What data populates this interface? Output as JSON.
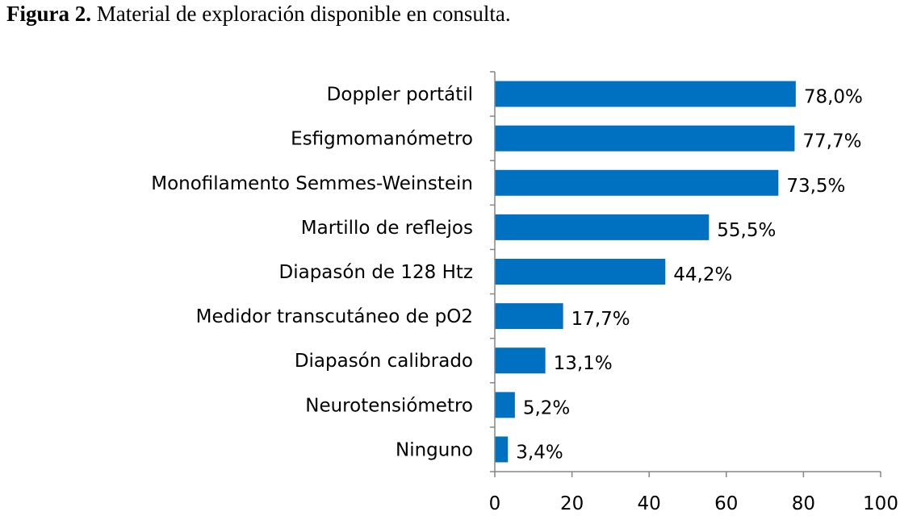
{
  "caption": {
    "number": "Figura 2.",
    "text": "Material de exploración disponible en consulta."
  },
  "chart_data": {
    "type": "bar",
    "orientation": "horizontal",
    "categories": [
      "Doppler portátil",
      "Esfigmomanómetro",
      "Monofilamento Semmes-Weinstein",
      "Martillo de reflejos",
      "Diapasón de 128 Htz",
      "Medidor transcutáneo de pO2",
      "Diapasón calibrado",
      "Neurotensiómetro",
      "Ninguno"
    ],
    "values": [
      78.0,
      77.7,
      73.5,
      55.5,
      44.2,
      17.7,
      13.1,
      5.2,
      3.4
    ],
    "value_labels": [
      "78,0%",
      "77,7%",
      "73,5%",
      "55,5%",
      "44,2%",
      "17,7%",
      "13,1%",
      "5,2%",
      "3,4%"
    ],
    "xlim": [
      0,
      100
    ],
    "xticks": [
      0,
      20,
      40,
      60,
      80,
      100
    ],
    "xlabel": "",
    "ylabel": "",
    "grid": false,
    "bar_color": "#0070C0",
    "axis_color": "#868686"
  }
}
